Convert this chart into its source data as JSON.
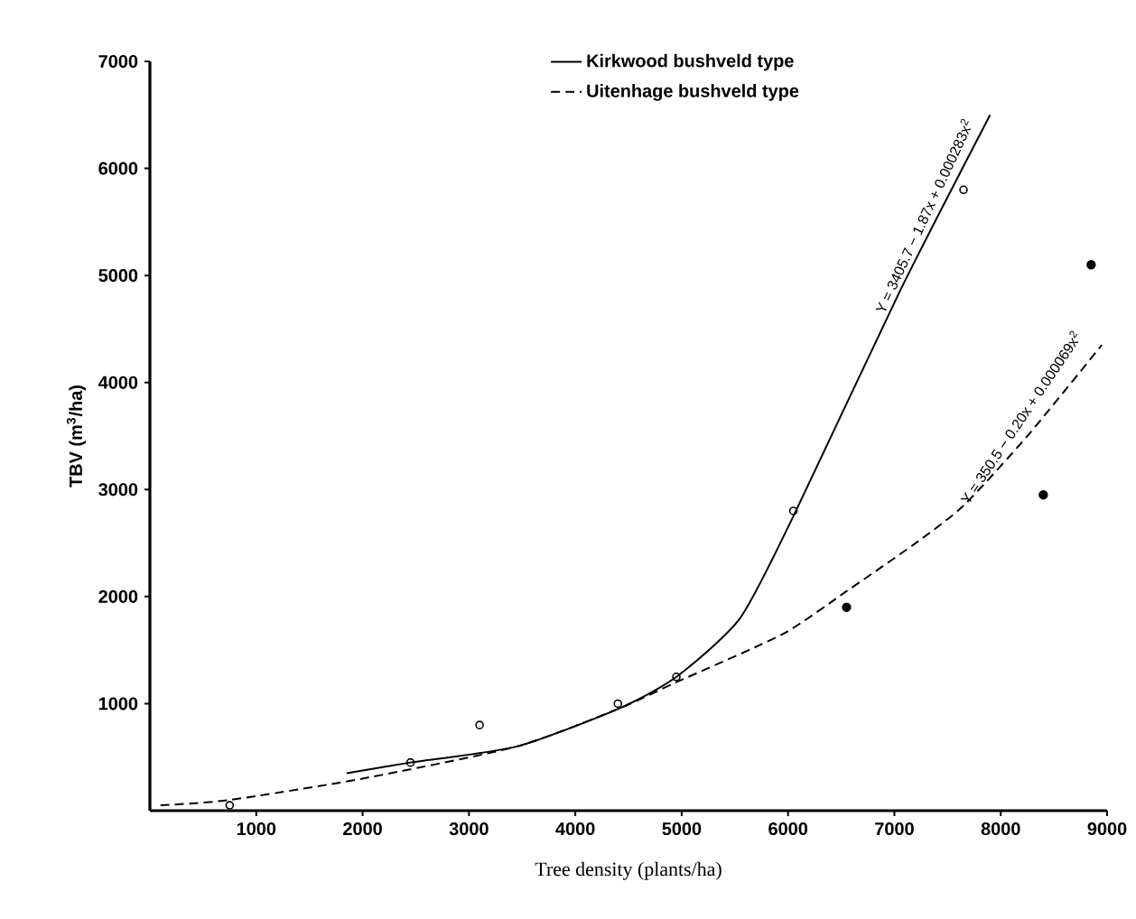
{
  "chart_data": {
    "type": "line",
    "xlabel": "Tree density (plants/ha)",
    "ylabel": "TBV (m$^{3}$/ha)",
    "xlim": [
      0,
      9000
    ],
    "ylim": [
      0,
      7000
    ],
    "xticks": [
      1000,
      2000,
      3000,
      4000,
      5000,
      6000,
      7000,
      8000,
      9000
    ],
    "yticks": [
      1000,
      2000,
      3000,
      4000,
      5000,
      6000,
      7000
    ],
    "grid": false,
    "legend": "top",
    "series": [
      {
        "name": "Kirkwood bushveld type",
        "color": "#000000",
        "line_style": "solid",
        "marker": "none",
        "x": [
          1850,
          2450,
          3450,
          4400,
          4950,
          5550,
          6050,
          7050,
          7900
        ],
        "values": [
          350,
          450,
          600,
          950,
          1250,
          1800,
          2750,
          4850,
          6500
        ]
      },
      {
        "name": "Uitenhage bushveld type",
        "color": "#000000",
        "line_style": "dashed",
        "marker": "none",
        "x": [
          100,
          750,
          2000,
          3450,
          4400,
          4950,
          5950,
          6550,
          7200,
          7650,
          8250,
          8950
        ],
        "values": [
          50,
          100,
          300,
          600,
          950,
          1200,
          1650,
          2050,
          2500,
          2850,
          3500,
          4350
        ]
      },
      {
        "type": "scatter",
        "color": "#000000",
        "marker": "circle",
        "x": [
          750,
          2450,
          3100,
          4400,
          4950,
          6050,
          7650
        ],
        "values": [
          50,
          450,
          800,
          1000,
          1250,
          2800,
          5800
        ]
      },
      {
        "type": "scatter",
        "color": "#000000",
        "marker": "filled circle",
        "x": [
          6550,
          8400,
          8850
        ],
        "values": [
          1900,
          2950,
          5100
        ]
      }
    ],
    "annotations": [
      {
        "text": "Y = 3405.7 − 1.87x + 0.000283x$^{2}$",
        "x": 7400,
        "y": 5500
      },
      {
        "text": "Y = 350.5 − 0.20x + 0.000069x$^{2}$",
        "x": 8300,
        "y": 3600
      }
    ]
  }
}
